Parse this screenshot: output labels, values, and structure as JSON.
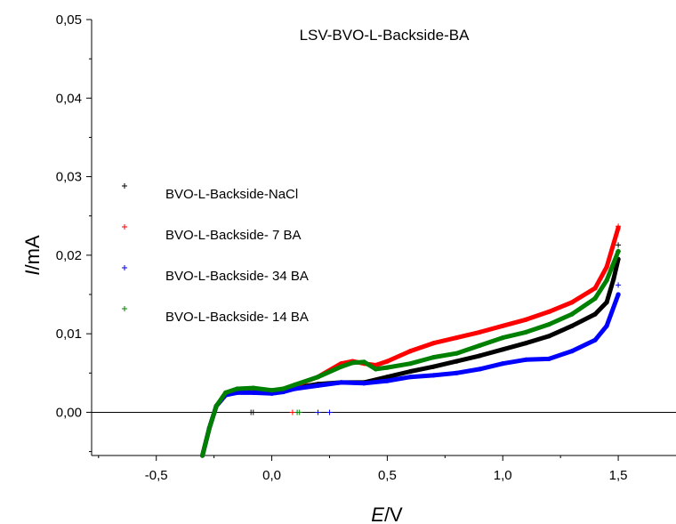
{
  "chart_data": {
    "type": "scatter",
    "title": "LSV-BVO-L-Backside-BA",
    "xlabel_italic": "E",
    "xlabel_unit": "/V",
    "ylabel_italic": "I",
    "ylabel_unit": "/mA",
    "xlim": [
      -0.78,
      1.75
    ],
    "ylim": [
      -0.0055,
      0.05
    ],
    "xticks": [
      -0.5,
      0.0,
      0.5,
      1.0,
      1.5
    ],
    "xtick_labels": [
      "-0,5",
      "0,0",
      "0,5",
      "1,0",
      "1,5"
    ],
    "yticks": [
      0.0,
      0.01,
      0.02,
      0.03,
      0.04,
      0.05
    ],
    "ytick_labels": [
      "0,00",
      "0,01",
      "0,02",
      "0,03",
      "0,04",
      "0,05"
    ],
    "zero_line": true,
    "legend_position": "left",
    "series": [
      {
        "name": "BVO-L-Backside-NaCl",
        "color": "#000000",
        "points": [
          [
            -0.3,
            -0.0055
          ],
          [
            -0.27,
            -0.002
          ],
          [
            -0.24,
            0.0008
          ],
          [
            -0.2,
            0.0022
          ],
          [
            -0.15,
            0.0027
          ],
          [
            -0.08,
            0.0029
          ],
          [
            0.0,
            0.0027
          ],
          [
            0.05,
            0.0028
          ],
          [
            0.1,
            0.0031
          ],
          [
            0.2,
            0.0036
          ],
          [
            0.3,
            0.0038
          ],
          [
            0.4,
            0.0038
          ],
          [
            0.5,
            0.0045
          ],
          [
            0.6,
            0.0052
          ],
          [
            0.7,
            0.0058
          ],
          [
            0.8,
            0.0065
          ],
          [
            0.9,
            0.0072
          ],
          [
            1.0,
            0.008
          ],
          [
            1.1,
            0.0088
          ],
          [
            1.2,
            0.0097
          ],
          [
            1.3,
            0.011
          ],
          [
            1.4,
            0.0125
          ],
          [
            1.45,
            0.014
          ],
          [
            1.48,
            0.017
          ],
          [
            1.5,
            0.0195
          ]
        ],
        "markers": [
          [
            -0.09,
            0.0
          ],
          [
            -0.08,
            0.0
          ],
          [
            1.5,
            0.0213
          ]
        ]
      },
      {
        "name": "BVO-L-Backside- 7 BA",
        "color": "#ff0000",
        "points": [
          [
            -0.3,
            -0.0055
          ],
          [
            -0.27,
            -0.002
          ],
          [
            -0.24,
            0.0008
          ],
          [
            -0.2,
            0.0022
          ],
          [
            -0.15,
            0.0027
          ],
          [
            -0.08,
            0.0028
          ],
          [
            0.0,
            0.0026
          ],
          [
            0.05,
            0.0028
          ],
          [
            0.1,
            0.0034
          ],
          [
            0.2,
            0.0045
          ],
          [
            0.3,
            0.0062
          ],
          [
            0.35,
            0.0065
          ],
          [
            0.4,
            0.0062
          ],
          [
            0.45,
            0.006
          ],
          [
            0.5,
            0.0065
          ],
          [
            0.6,
            0.0078
          ],
          [
            0.7,
            0.0088
          ],
          [
            0.8,
            0.0095
          ],
          [
            0.9,
            0.0102
          ],
          [
            1.0,
            0.011
          ],
          [
            1.1,
            0.0118
          ],
          [
            1.2,
            0.0128
          ],
          [
            1.3,
            0.014
          ],
          [
            1.4,
            0.0158
          ],
          [
            1.45,
            0.0185
          ],
          [
            1.5,
            0.0235
          ]
        ],
        "markers": [
          [
            0.09,
            0.0
          ],
          [
            1.5,
            0.0237
          ]
        ]
      },
      {
        "name": "BVO-L-Backside- 34 BA",
        "color": "#0000ff",
        "points": [
          [
            -0.3,
            -0.0055
          ],
          [
            -0.27,
            -0.002
          ],
          [
            -0.24,
            0.0008
          ],
          [
            -0.2,
            0.0022
          ],
          [
            -0.15,
            0.0025
          ],
          [
            -0.08,
            0.0025
          ],
          [
            0.0,
            0.0024
          ],
          [
            0.05,
            0.0026
          ],
          [
            0.1,
            0.003
          ],
          [
            0.2,
            0.0034
          ],
          [
            0.3,
            0.0038
          ],
          [
            0.4,
            0.0037
          ],
          [
            0.5,
            0.004
          ],
          [
            0.6,
            0.0045
          ],
          [
            0.7,
            0.0047
          ],
          [
            0.8,
            0.005
          ],
          [
            0.9,
            0.0055
          ],
          [
            1.0,
            0.0062
          ],
          [
            1.1,
            0.0067
          ],
          [
            1.2,
            0.0068
          ],
          [
            1.3,
            0.0078
          ],
          [
            1.4,
            0.0092
          ],
          [
            1.45,
            0.011
          ],
          [
            1.5,
            0.015
          ]
        ],
        "markers": [
          [
            0.2,
            0.0
          ],
          [
            0.25,
            0.0
          ],
          [
            1.5,
            0.0162
          ]
        ]
      },
      {
        "name": "BVO-L-Backside- 14 BA",
        "color": "#008000",
        "points": [
          [
            -0.3,
            -0.0055
          ],
          [
            -0.27,
            -0.002
          ],
          [
            -0.24,
            0.0008
          ],
          [
            -0.2,
            0.0025
          ],
          [
            -0.15,
            0.003
          ],
          [
            -0.08,
            0.0031
          ],
          [
            0.0,
            0.0028
          ],
          [
            0.05,
            0.003
          ],
          [
            0.1,
            0.0035
          ],
          [
            0.2,
            0.0045
          ],
          [
            0.3,
            0.0058
          ],
          [
            0.35,
            0.0063
          ],
          [
            0.4,
            0.0064
          ],
          [
            0.45,
            0.0055
          ],
          [
            0.5,
            0.0057
          ],
          [
            0.6,
            0.0062
          ],
          [
            0.7,
            0.007
          ],
          [
            0.8,
            0.0075
          ],
          [
            0.9,
            0.0085
          ],
          [
            1.0,
            0.0095
          ],
          [
            1.1,
            0.0102
          ],
          [
            1.2,
            0.0112
          ],
          [
            1.3,
            0.0125
          ],
          [
            1.4,
            0.0145
          ],
          [
            1.45,
            0.0168
          ],
          [
            1.5,
            0.0205
          ]
        ],
        "markers": [
          [
            0.11,
            0.0
          ],
          [
            0.12,
            0.0
          ],
          [
            1.5,
            0.0205
          ]
        ]
      }
    ]
  }
}
